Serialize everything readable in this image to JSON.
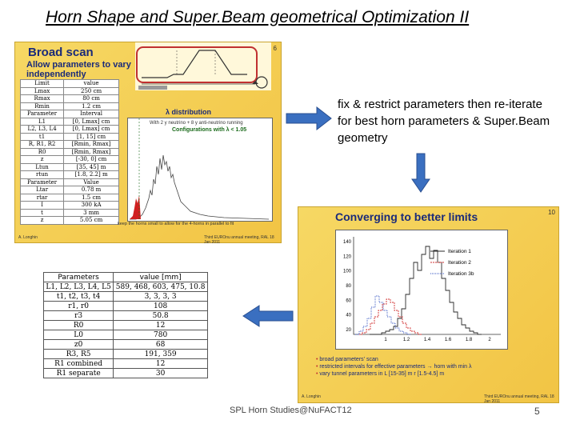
{
  "title": "Horn Shape and Super.Beam geometrical Optimization II",
  "note": "fix & restrict parameters then re-iterate for best horn parameters & Super.Beam geometry",
  "footer": "SPL Horn Studies@NuFACT12",
  "page_number": "5",
  "slide1": {
    "heading": "Broad scan",
    "slide_number": "6",
    "subheading": "Allow parameters to vary independently",
    "table": {
      "header1": [
        "Limit",
        "value"
      ],
      "rows1": [
        [
          "Lmax",
          "250 cm"
        ],
        [
          "Rmax",
          "80 cm"
        ],
        [
          "Rmin",
          "1.2 cm"
        ]
      ],
      "header2": [
        "Parameter",
        "Interval"
      ],
      "rows2": [
        [
          "L1",
          "[0, Lmax] cm"
        ],
        [
          "L2, L3, L4",
          "[0, Lmax] cm"
        ],
        [
          "t1",
          "[1, 15] cm"
        ],
        [
          "R, R1, R2",
          "[Rmin, Rmax]"
        ],
        [
          "R0",
          "[Rmin, Rmax]"
        ],
        [
          "z",
          "[-30, 0] cm"
        ],
        [
          "Ltun",
          "[35, 45] m"
        ],
        [
          "rtun",
          "[1.8, 2.2] m"
        ]
      ],
      "header3": [
        "Parameter",
        "Value"
      ],
      "rows3": [
        [
          "Ltar",
          "0.78 m"
        ],
        [
          "rtar",
          "1.5 cm"
        ],
        [
          "I",
          "300 kA"
        ],
        [
          "t",
          "3 mm"
        ],
        [
          "z",
          "5.05 cm"
        ]
      ]
    },
    "plot_title": "λ distribution",
    "plot_note": "With 2 y neutrino + 8 y anti-neutrino running",
    "plot_highlight": "Configurations with λ < 1.05",
    "caption": "keep the horns small to allow for the 4-horns in parallel to fit",
    "author": "A. Longhin",
    "meeting": "Third EUROnu annual meeting, RAL 18 Jan 2011"
  },
  "slide2": {
    "heading": "Converging to better limits",
    "slide_number": "10",
    "legend": [
      "Iteration 1",
      "Iteration 2",
      "Iteration 3b"
    ],
    "bullets": [
      "broad parameters' scan",
      "restricted intervals for effective parameters → horn with min λ",
      "vary tunnel parameters in L [15-35] m r [1.5-4.5] m"
    ],
    "author": "A. Longhin",
    "meeting": "Third EUROnu annual meeting, RAL 18 Jan 2011",
    "yticks": [
      "140",
      "120",
      "100",
      "80",
      "60",
      "40",
      "20"
    ],
    "xticks": [
      "1",
      "1.2",
      "1.4",
      "1.6",
      "1.8",
      "2"
    ],
    "colors": {
      "iter1": "#2a2a2a",
      "iter2": "#d03030",
      "iter3": "#3050c0"
    }
  },
  "table3": {
    "header": [
      "Parameters",
      "value [mm]"
    ],
    "rows": [
      [
        "L1, L2, L3, L4, L5",
        "589, 468, 603, 475, 10.8"
      ],
      [
        "t1, t2, t3, t4",
        "3, 3, 3, 3"
      ],
      [
        "r1, r0",
        "108"
      ],
      [
        "r3",
        "50.8"
      ],
      [
        "R0",
        "12"
      ],
      [
        "L0",
        "780"
      ],
      [
        "z0",
        "68"
      ],
      [
        "R3, R5",
        "191, 359"
      ],
      [
        "R1 combined",
        "12"
      ],
      [
        "R1 separate",
        "30"
      ]
    ]
  },
  "colors": {
    "slide_bg": "#f4cc4c",
    "slide_heading": "#1a2a7a",
    "arrow": "#3a6fc0"
  }
}
